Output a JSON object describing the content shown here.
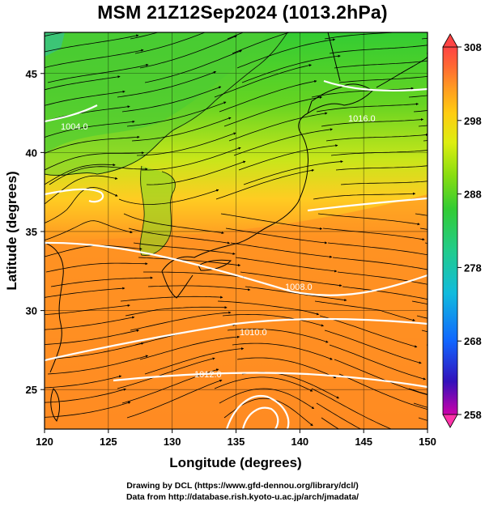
{
  "title": "MSM 21Z12Sep2024 (1013.2hPa)",
  "x_axis": {
    "label": "Longitude (degrees)",
    "range": [
      120,
      150
    ],
    "ticks": [
      "120",
      "125",
      "130",
      "135",
      "140",
      "145",
      "150"
    ]
  },
  "y_axis": {
    "label": "Latitude  (degrees)",
    "range": [
      22.5,
      47.6
    ],
    "ticks": [
      "25",
      "30",
      "35",
      "40",
      "45"
    ]
  },
  "colorbar": {
    "range": [
      258,
      308
    ],
    "ticks": [
      "308",
      "298",
      "288",
      "278",
      "268",
      "258"
    ],
    "colors": [
      "#cc00aa",
      "#3311bb",
      "#1166ff",
      "#11bbdd",
      "#22cc88",
      "#33cc33",
      "#88dd11",
      "#ddee11",
      "#ffcc11",
      "#ff9922",
      "#ff6633",
      "#ff4444"
    ]
  },
  "isobars": [
    {
      "label": "1010.0",
      "value": 1010.0
    },
    {
      "label": "1012.0",
      "value": 1012.0
    },
    {
      "label": "1008.0",
      "value": 1008.0
    },
    {
      "label": "1016.0",
      "value": 1016.0
    },
    {
      "label": "1004.0",
      "value": 1004.0
    }
  ],
  "credits": {
    "line1": "Drawing by DCL (https://www.gfd-dennou.org/library/dcl/)",
    "line2": "Data from http://database.rish.kyoto-u.ac.jp/arch/jmadata/"
  }
}
